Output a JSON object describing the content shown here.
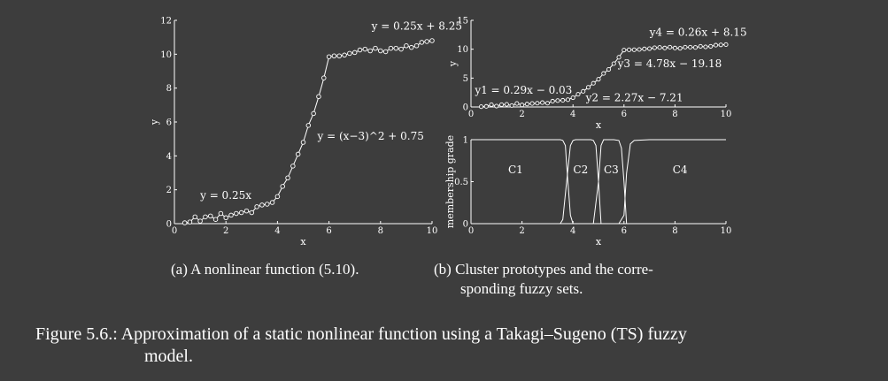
{
  "chart_data": [
    {
      "type": "line",
      "panel": "a",
      "xlabel": "x",
      "ylabel": "y",
      "xlim": [
        0,
        10
      ],
      "ylim": [
        0,
        12
      ],
      "xticks": [
        0,
        2,
        4,
        6,
        8,
        10
      ],
      "yticks": [
        0,
        2,
        4,
        6,
        8,
        10,
        12
      ],
      "markers": "open-circle",
      "x": [
        0.4,
        0.6,
        0.8,
        1.0,
        1.2,
        1.4,
        1.6,
        1.8,
        2.0,
        2.2,
        2.4,
        2.6,
        2.8,
        3.0,
        3.2,
        3.4,
        3.6,
        3.8,
        4.0,
        4.2,
        4.4,
        4.6,
        4.8,
        5.0,
        5.2,
        5.4,
        5.6,
        5.8,
        6.0,
        6.2,
        6.4,
        6.6,
        6.8,
        7.0,
        7.2,
        7.4,
        7.6,
        7.8,
        8.0,
        8.2,
        8.4,
        8.6,
        8.8,
        9.0,
        9.2,
        9.4,
        9.6,
        9.8,
        10.0
      ],
      "y": [
        0.05,
        0.1,
        0.4,
        0.15,
        0.4,
        0.45,
        0.25,
        0.6,
        0.35,
        0.5,
        0.6,
        0.65,
        0.75,
        0.65,
        1.0,
        1.1,
        1.15,
        1.25,
        1.6,
        2.2,
        2.7,
        3.4,
        4.1,
        4.8,
        5.8,
        6.5,
        7.5,
        8.6,
        9.85,
        9.9,
        9.9,
        9.95,
        10.05,
        10.1,
        10.25,
        10.3,
        10.2,
        10.35,
        10.2,
        10.15,
        10.35,
        10.35,
        10.3,
        10.5,
        10.4,
        10.5,
        10.7,
        10.75,
        10.8
      ],
      "annotations": [
        {
          "text": "y = 0.25x",
          "x": 1.0,
          "y": 1.45
        },
        {
          "text": "y = (x−3)^2 + 0.75",
          "x": 5.55,
          "y": 4.95
        },
        {
          "text": "y = 0.25x + 8.25",
          "x": 7.65,
          "y": 11.45
        }
      ]
    },
    {
      "type": "line",
      "panel": "b-top",
      "xlabel": "x",
      "ylabel": "y",
      "xlim": [
        0,
        10
      ],
      "ylim": [
        0,
        15
      ],
      "xticks": [
        0,
        2,
        4,
        6,
        8,
        10
      ],
      "yticks": [
        0,
        5,
        10,
        15
      ],
      "markers": "open-circle",
      "x": [
        0.4,
        0.6,
        0.8,
        1.0,
        1.2,
        1.4,
        1.6,
        1.8,
        2.0,
        2.2,
        2.4,
        2.6,
        2.8,
        3.0,
        3.2,
        3.4,
        3.6,
        3.8,
        4.0,
        4.2,
        4.4,
        4.6,
        4.8,
        5.0,
        5.2,
        5.4,
        5.6,
        5.8,
        6.0,
        6.2,
        6.4,
        6.6,
        6.8,
        7.0,
        7.2,
        7.4,
        7.6,
        7.8,
        8.0,
        8.2,
        8.4,
        8.6,
        8.8,
        9.0,
        9.2,
        9.4,
        9.6,
        9.8,
        10.0
      ],
      "y": [
        0.05,
        0.1,
        0.4,
        0.15,
        0.4,
        0.45,
        0.25,
        0.6,
        0.35,
        0.5,
        0.6,
        0.65,
        0.75,
        0.65,
        1.0,
        1.1,
        1.15,
        1.25,
        1.6,
        2.2,
        2.7,
        3.4,
        4.1,
        4.8,
        5.8,
        6.5,
        7.5,
        8.6,
        9.85,
        9.9,
        9.9,
        9.95,
        10.05,
        10.1,
        10.25,
        10.3,
        10.2,
        10.35,
        10.2,
        10.15,
        10.35,
        10.35,
        10.3,
        10.5,
        10.4,
        10.5,
        10.7,
        10.75,
        10.8
      ],
      "annotations": [
        {
          "text": "y1 = 0.29x − 0.03",
          "x": 0.15,
          "y": 2.3
        },
        {
          "text": "y2 = 2.27x − 7.21",
          "x": 4.5,
          "y": 1.0
        },
        {
          "text": "y3 = 4.78x − 19.18",
          "x": 5.75,
          "y": 6.9
        },
        {
          "text": "y4 = 0.26x + 8.15",
          "x": 7.0,
          "y": 12.3
        }
      ]
    },
    {
      "type": "line",
      "panel": "b-bottom",
      "xlabel": "x",
      "ylabel": "membership grade",
      "xlim": [
        0,
        10
      ],
      "ylim": [
        0,
        1
      ],
      "xticks": [
        0,
        2,
        4,
        6,
        8,
        10
      ],
      "yticks": [
        0,
        0.5,
        1
      ],
      "series": [
        {
          "name": "C1",
          "label_x": 1.75,
          "label_y": 0.6,
          "x": [
            0,
            3.5,
            3.6,
            3.7,
            3.75,
            3.9,
            4.0,
            10
          ],
          "y": [
            1,
            1,
            0.99,
            0.93,
            0.7,
            0.1,
            0,
            0
          ]
        },
        {
          "name": "C2",
          "label_x": 4.3,
          "label_y": 0.6,
          "x": [
            0,
            3.5,
            3.6,
            3.75,
            3.9,
            4.0,
            4.1,
            4.2,
            4.7,
            4.8,
            4.9,
            5.0,
            5.1,
            10
          ],
          "y": [
            0,
            0,
            0.05,
            0.5,
            0.93,
            0.99,
            1,
            1,
            1,
            0.99,
            0.93,
            0.5,
            0,
            0
          ]
        },
        {
          "name": "C3",
          "label_x": 5.5,
          "label_y": 0.6,
          "x": [
            0,
            4.8,
            5.0,
            5.1,
            5.2,
            5.3,
            5.6,
            5.8,
            5.9,
            6.0,
            6.1,
            10
          ],
          "y": [
            0,
            0,
            0.5,
            0.93,
            1,
            1,
            1,
            0.99,
            0.9,
            0.5,
            0,
            0
          ]
        },
        {
          "name": "C4",
          "label_x": 8.2,
          "label_y": 0.6,
          "x": [
            0,
            5.8,
            6.0,
            6.1,
            6.25,
            6.4,
            7.0,
            10
          ],
          "y": [
            0,
            0,
            0.1,
            0.6,
            0.95,
            0.99,
            1,
            1
          ]
        }
      ]
    }
  ],
  "captions": {
    "a": "(a) A nonlinear function (5.10).",
    "b_line1": "(b) Cluster prototypes and the corre-",
    "b_line2": "sponding fuzzy sets.",
    "figure_label": "Figure 5.6.:",
    "figure_line1": "Approximation of a static nonlinear function using a Takagi–Sugeno (TS) fuzzy",
    "figure_line2": "model."
  }
}
